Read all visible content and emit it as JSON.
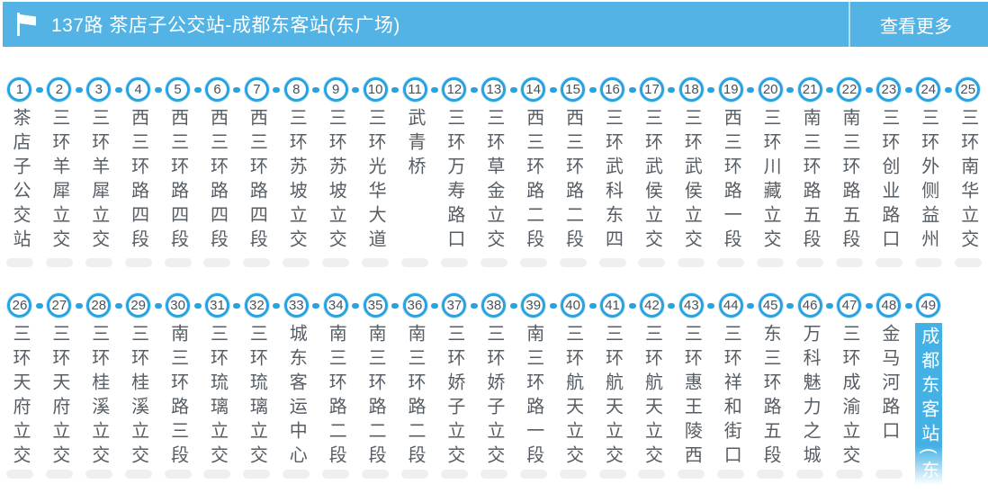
{
  "header": {
    "title": "137路 茶店子公交站-成都东客站(东广场)",
    "route_number": "137路",
    "route_name": "茶店子公交站-成都东客站(东广场)",
    "more_label": "查看更多",
    "flag_icon": "flag-icon"
  },
  "colors": {
    "header_blue": "#52b3e4",
    "accent_blue": "#2aa2df",
    "highlight_bg": "#44b1e6",
    "stop_text": "#565d64",
    "number_text": "#4b5158",
    "underline_gray": "#efefef",
    "header_text": "#ffffff",
    "highlight_text": "#ffffff"
  },
  "route": {
    "rows": [
      {
        "stops": [
          {
            "num": "1",
            "name": "茶店子公交站"
          },
          {
            "num": "2",
            "name": "三环羊犀立交"
          },
          {
            "num": "3",
            "name": "三环羊犀立交"
          },
          {
            "num": "4",
            "name": "西三环路四段"
          },
          {
            "num": "5",
            "name": "西三环路四段"
          },
          {
            "num": "6",
            "name": "西三环路四段"
          },
          {
            "num": "7",
            "name": "西三环路四段"
          },
          {
            "num": "8",
            "name": "三环苏坡立交"
          },
          {
            "num": "9",
            "name": "三环苏坡立交"
          },
          {
            "num": "10",
            "name": "三环光华大道"
          },
          {
            "num": "11",
            "name": "武青桥"
          },
          {
            "num": "12",
            "name": "三环万寿路口"
          },
          {
            "num": "13",
            "name": "三环草金立交"
          },
          {
            "num": "14",
            "name": "西三环路二段"
          },
          {
            "num": "15",
            "name": "西三环路二段"
          },
          {
            "num": "16",
            "name": "三环武科东四"
          },
          {
            "num": "17",
            "name": "三环武侯立交"
          },
          {
            "num": "18",
            "name": "三环武侯立交"
          },
          {
            "num": "19",
            "name": "西三环路一段"
          },
          {
            "num": "20",
            "name": "三环川藏立交"
          },
          {
            "num": "21",
            "name": "南三环路五段"
          },
          {
            "num": "22",
            "name": "南三环路五段"
          },
          {
            "num": "23",
            "name": "三环创业路口"
          },
          {
            "num": "24",
            "name": "三环外侧益州"
          },
          {
            "num": "25",
            "name": "三环南华立交"
          }
        ]
      },
      {
        "stops": [
          {
            "num": "26",
            "name": "三环天府立交"
          },
          {
            "num": "27",
            "name": "三环天府立交"
          },
          {
            "num": "28",
            "name": "三环桂溪立交"
          },
          {
            "num": "29",
            "name": "三环桂溪立交"
          },
          {
            "num": "30",
            "name": "南三环路三段"
          },
          {
            "num": "31",
            "name": "三环琉璃立交"
          },
          {
            "num": "32",
            "name": "三环琉璃立交"
          },
          {
            "num": "33",
            "name": "城东客运中心"
          },
          {
            "num": "34",
            "name": "南三环路二段"
          },
          {
            "num": "35",
            "name": "南三环路二段"
          },
          {
            "num": "36",
            "name": "南三环路二段"
          },
          {
            "num": "37",
            "name": "三环娇子立交"
          },
          {
            "num": "38",
            "name": "三环娇子立交"
          },
          {
            "num": "39",
            "name": "南三环路一段"
          },
          {
            "num": "40",
            "name": "三环航天立交"
          },
          {
            "num": "41",
            "name": "三环航天立交"
          },
          {
            "num": "42",
            "name": "三环航天立交"
          },
          {
            "num": "43",
            "name": "三环惠王陵西"
          },
          {
            "num": "44",
            "name": "三环祥和街口"
          },
          {
            "num": "45",
            "name": "东三环路五段"
          },
          {
            "num": "46",
            "name": "万科魅力之城"
          },
          {
            "num": "47",
            "name": "三环成渝立交"
          },
          {
            "num": "48",
            "name": "金马河路口"
          },
          {
            "num": "49",
            "name": "成都东客站(东",
            "highlighted": true
          }
        ]
      }
    ]
  }
}
